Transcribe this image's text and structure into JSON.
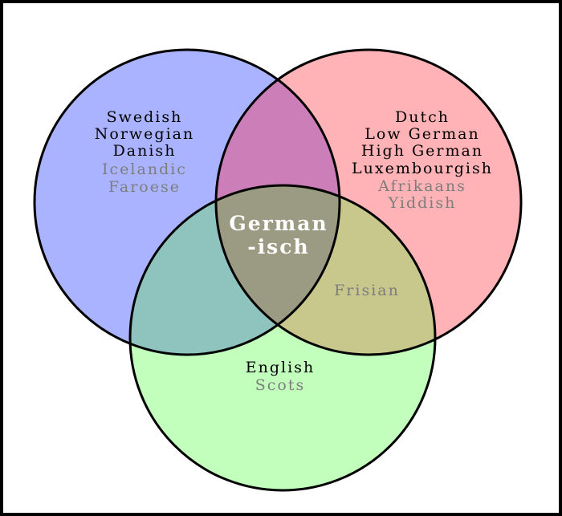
{
  "colors": {
    "blue_circle": "#aab3ff",
    "red_circle": "#ffb3b6",
    "green_circle": "#c2ffbd",
    "blue_red": "#cc7eb8",
    "blue_green": "#8fc4be",
    "red_green": "#c8c78c",
    "center": "#9a9b82",
    "primary_text": "#000000",
    "secondary_text": "#7d7d7d",
    "center_text": "#ffffff"
  },
  "sets": {
    "north_germanic": {
      "primary": [
        "Swedish",
        "Norwegian",
        "Danish"
      ],
      "secondary": [
        "Icelandic",
        "Faroese"
      ]
    },
    "west_continental": {
      "primary": [
        "Dutch",
        "Low German",
        "High German",
        "Luxembourgish"
      ],
      "secondary": [
        "Afrikaans",
        "Yiddish"
      ]
    },
    "anglic": {
      "primary": [
        "English"
      ],
      "secondary": [
        "Scots"
      ]
    }
  },
  "overlap_red_green": "Frisian",
  "center_label": [
    "German",
    "-isch"
  ]
}
